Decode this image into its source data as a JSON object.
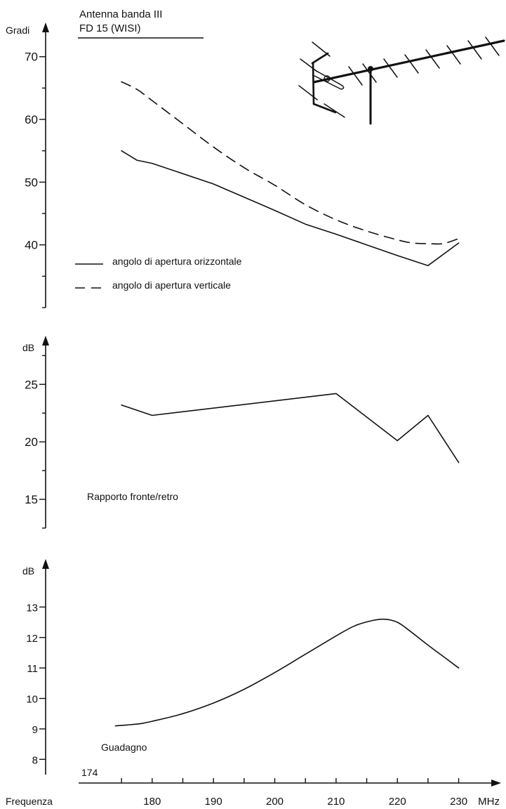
{
  "header": {
    "line1": "Antenna banda III",
    "line2": "FD 15 (WISI)"
  },
  "colors": {
    "ink": "#111111",
    "background": "#ffffff"
  },
  "icons": [
    "yagi-antenna-icon"
  ],
  "chart_data": [
    {
      "type": "line",
      "title": "",
      "ylabel": "Gradi",
      "ylim": [
        30,
        74
      ],
      "yticks": [
        40,
        50,
        60,
        70
      ],
      "ytick_labels": [
        "40",
        "50",
        "60",
        "70"
      ],
      "grid": false,
      "legend_placement": "lower-left",
      "series": [
        {
          "name": "angolo di apertura orizzontale",
          "style": "solid",
          "x": [
            175,
            177.5,
            180,
            190,
            200,
            205,
            210,
            215,
            220,
            225,
            230
          ],
          "y": [
            55,
            53.5,
            53,
            49.7,
            45.5,
            43.3,
            41.7,
            40,
            38.3,
            36.7,
            40.3
          ]
        },
        {
          "name": "angolo di apertura verticale",
          "style": "dashed",
          "x": [
            175,
            177.5,
            180,
            185,
            190,
            195,
            200,
            205,
            210,
            215,
            220,
            222.5,
            225,
            227.5,
            230
          ],
          "y": [
            66,
            64.8,
            63,
            59.3,
            55.6,
            52.3,
            49.5,
            46.4,
            44,
            42.2,
            40.8,
            40.3,
            40.2,
            40.2,
            41
          ]
        }
      ]
    },
    {
      "type": "line",
      "title": "",
      "ylabel": "dB",
      "annotation": "Rapporto fronte/retro",
      "ylim": [
        12.5,
        28.5
      ],
      "yticks": [
        15,
        20,
        25
      ],
      "ytick_labels": [
        "15",
        "20",
        "25"
      ],
      "grid": false,
      "series": [
        {
          "x": [
            175,
            180,
            210,
            220,
            225,
            230
          ],
          "y": [
            23.2,
            22.3,
            24.2,
            20.1,
            22.3,
            18.2
          ]
        }
      ]
    },
    {
      "type": "line",
      "title": "",
      "ylabel": "dB",
      "annotation": "Guadagno",
      "start_label": "174",
      "ylim": [
        7.5,
        14.3
      ],
      "yticks": [
        8,
        9,
        10,
        11,
        12,
        13
      ],
      "ytick_labels": [
        "8",
        "9",
        "10",
        "11",
        "12",
        "13"
      ],
      "xlabel": "Frequenza",
      "xunit": "MHz",
      "xlim": [
        168,
        236
      ],
      "xticks": [
        175,
        180,
        185,
        190,
        195,
        200,
        205,
        210,
        215,
        220,
        225,
        230
      ],
      "xtick_labels": [
        "180",
        "190",
        "200",
        "210",
        "220",
        "230"
      ],
      "xtick_label_values": [
        180,
        190,
        200,
        210,
        220,
        230
      ],
      "grid": false,
      "series": [
        {
          "x": [
            174,
            176,
            178,
            180,
            185,
            190,
            195,
            200,
            205,
            210,
            213,
            216,
            218,
            220,
            222,
            225,
            228,
            230
          ],
          "y": [
            9.1,
            9.13,
            9.17,
            9.25,
            9.5,
            9.85,
            10.3,
            10.85,
            11.45,
            12.05,
            12.38,
            12.56,
            12.6,
            12.5,
            12.22,
            11.75,
            11.3,
            11.0
          ]
        }
      ]
    }
  ]
}
